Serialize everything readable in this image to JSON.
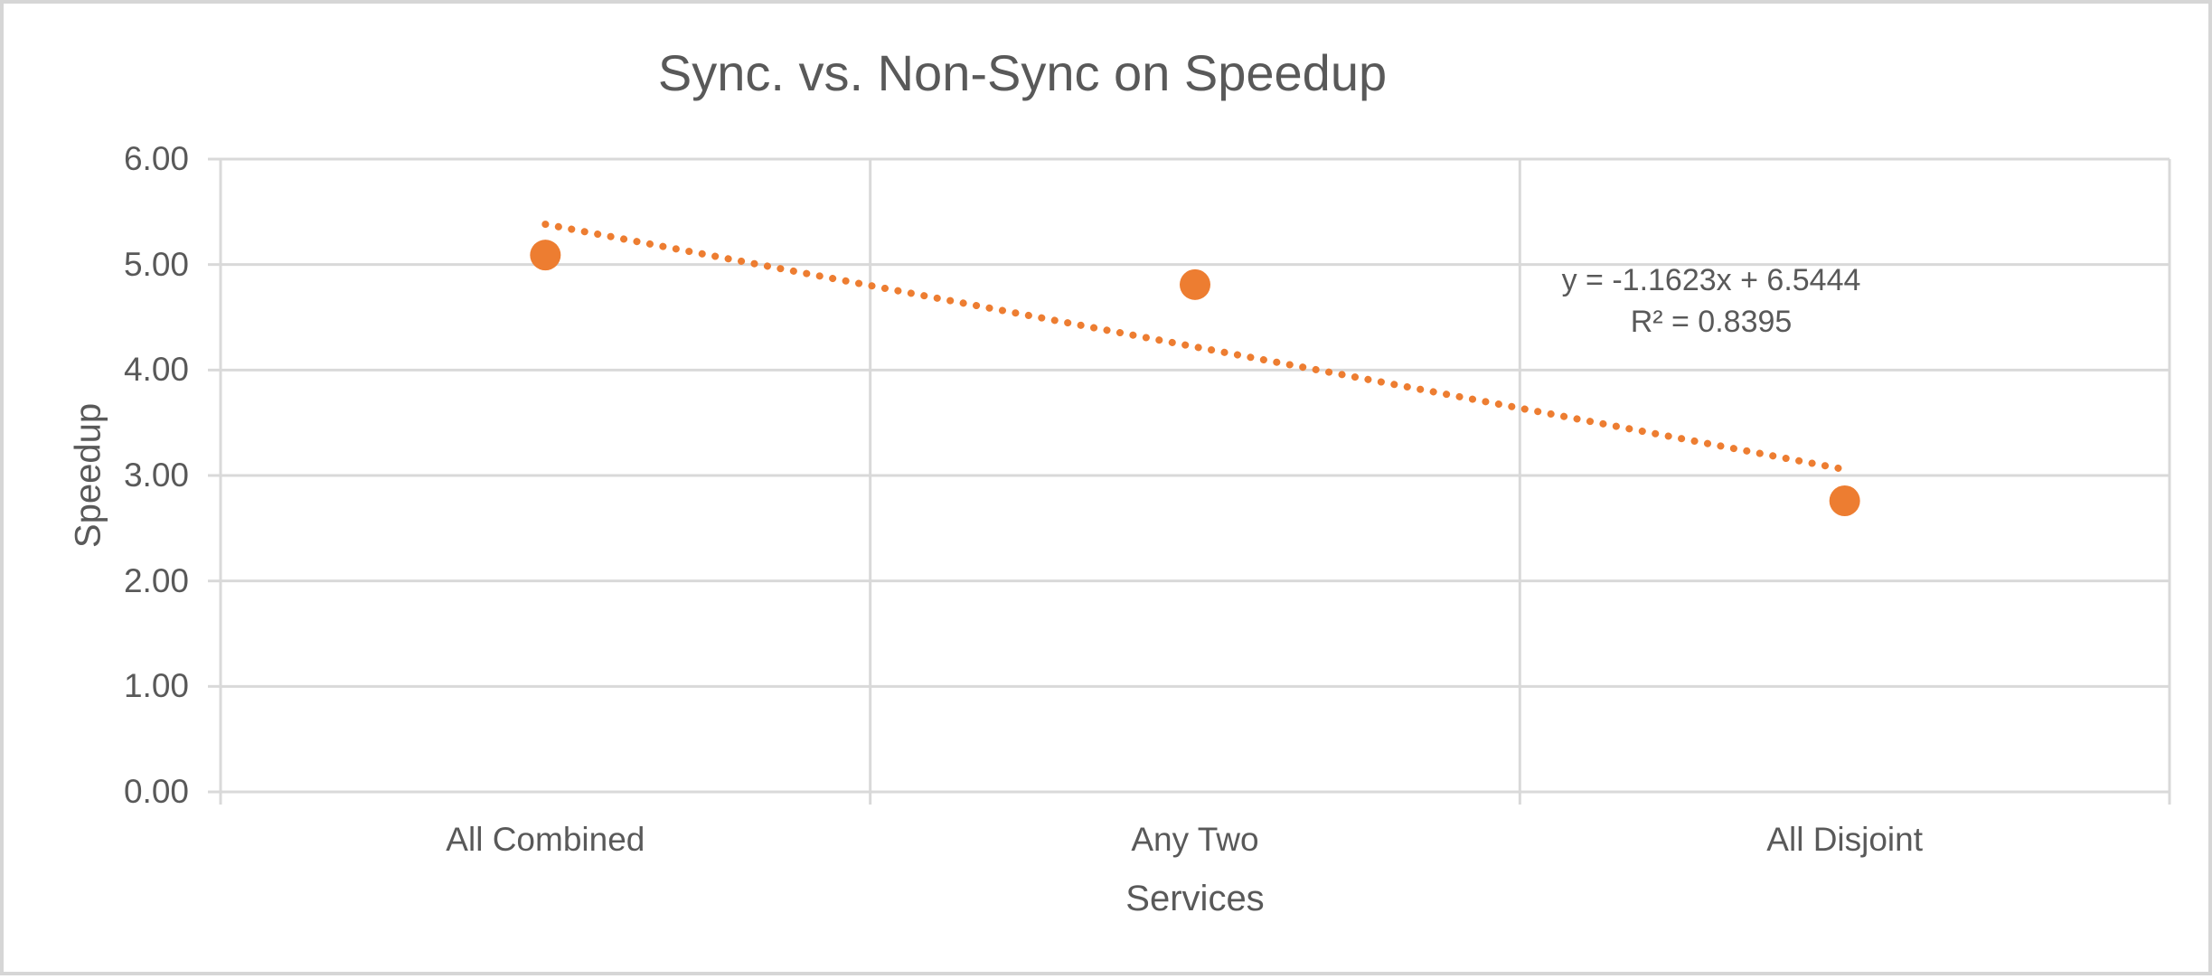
{
  "chart_data": {
    "type": "scatter",
    "title": "Sync. vs. Non-Sync on Speedup",
    "xlabel": "Services",
    "ylabel": "Speedup",
    "categories": [
      "All Combined",
      "Any Two",
      "All Disjoint"
    ],
    "x": [
      1,
      2,
      3
    ],
    "values": [
      5.09,
      4.81,
      2.76
    ],
    "ylim": [
      0,
      6
    ],
    "ytick_step": 1,
    "ytick_labels": [
      "0.00",
      "1.00",
      "2.00",
      "3.00",
      "4.00",
      "5.00",
      "6.00"
    ],
    "grid": true,
    "legend": "none",
    "marker_color": "#ED7D31",
    "trendline": {
      "type": "linear",
      "slope": -1.1623,
      "intercept": 6.5444,
      "x_range": [
        1,
        3
      ],
      "style": "round-dot",
      "color": "#ED7D31",
      "equation_label": "y = -1.1623x + 6.5444",
      "r_squared_label": "R² = 0.8395"
    }
  },
  "colors": {
    "text": "#595959",
    "gridline": "#D9D9D9",
    "axis_line": "#D9D9D9",
    "frame_border": "#D6D6D6",
    "background": "#FFFFFF",
    "accent_orange": "#ED7D31"
  }
}
